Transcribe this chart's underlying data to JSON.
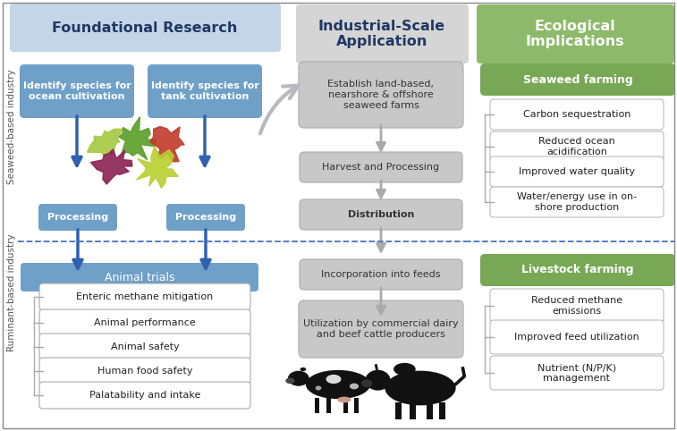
{
  "col1_header": "Foundational Research",
  "col2_header": "Industrial-Scale\nApplication",
  "col3_header": "Ecological\nImplications",
  "col1_bg": "#c5d5e8",
  "col2_bg": "#d5d5d5",
  "col3_bg": "#8db96a",
  "seaweed_box1": "Identify species for\nocean cultivation",
  "seaweed_box2": "Identify species for\ntank cultivation",
  "processing1": "Processing",
  "processing2": "Processing",
  "seaweed_label": "Seaweed-based industry",
  "ruminant_label": "Ruminant-based industry",
  "animal_trials_header": "Animal trials",
  "animal_trials_items": [
    "Enteric methane mitigation",
    "Animal performance",
    "Animal safety",
    "Human food safety",
    "Palatability and intake"
  ],
  "ind_steps": [
    "Establish land-based,\nnearshore & offshore\nseaweed farms",
    "Harvest and Processing",
    "Distribution",
    "Incorporation into feeds",
    "Utilization by commercial dairy\nand beef cattle producers"
  ],
  "seaweed_farming_header": "Seaweed farming",
  "seaweed_farming_items": [
    "Carbon sequestration",
    "Reduced ocean\nacidification",
    "Improved water quality",
    "Water/energy use in on-\nshore production"
  ],
  "livestock_farming_header": "Livestock farming",
  "livestock_farming_items": [
    "Reduced methane\nemissions",
    "Improved feed utilization",
    "Nutrient (N/P/K)\nmanagement"
  ],
  "blue_box_color": "#6fa0c8",
  "blue_arrow_color": "#3060b0",
  "gray_box_color": "#c8c8c8",
  "gray_arrow_color": "#aaaaaa",
  "green_header_color": "#78a855",
  "dashed_line_color": "#4472c4",
  "text_dark_blue": "#1f3864",
  "text_white": "#ffffff",
  "text_gray_dark": "#333333",
  "text_black": "#111111"
}
